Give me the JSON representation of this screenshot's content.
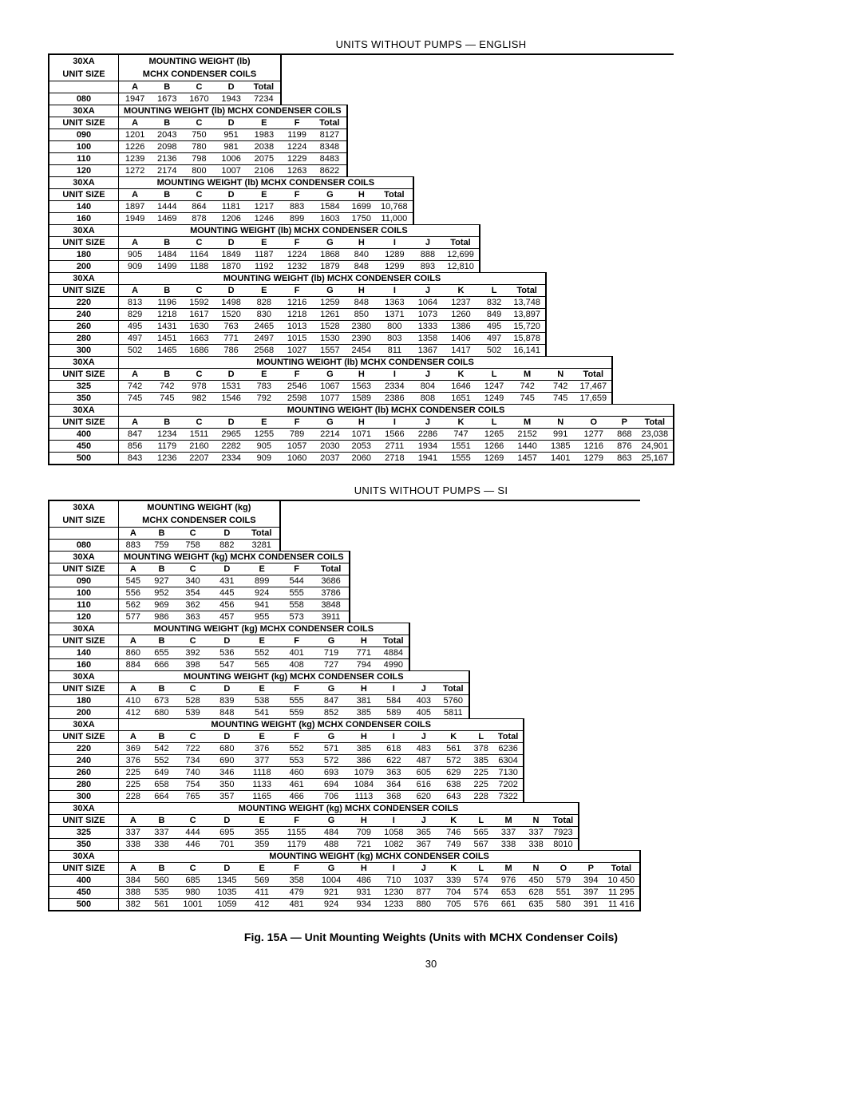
{
  "titles": {
    "english": "UNITS WITHOUT PUMPS — ENGLISH",
    "si": "UNITS WITHOUT PUMPS — SI"
  },
  "labels": {
    "unit_size_top": "30XA",
    "unit_size_bottom": "UNIT SIZE",
    "total": "Total"
  },
  "caption": "Fig. 15A — Unit Mounting Weights (Units with MCHX Condenser Coils)",
  "page_number": "30",
  "english": {
    "groups": [
      {
        "title_top": "MOUNTING WEIGHT (lb)",
        "title_bottom": "MCHX CONDENSER COILS",
        "letters": [
          "A",
          "B",
          "C",
          "D"
        ],
        "rows": [
          {
            "size": "080",
            "vals": [
              1947,
              1673,
              1670,
              1943
            ],
            "total": 7234
          }
        ]
      },
      {
        "title": "MOUNTING WEIGHT (lb) MCHX CONDENSER COILS",
        "letters": [
          "A",
          "B",
          "C",
          "D",
          "E",
          "F"
        ],
        "rows": [
          {
            "size": "090",
            "vals": [
              1201,
              2043,
              750,
              951,
              1983,
              1199
            ],
            "total": 8127
          },
          {
            "size": "100",
            "vals": [
              1226,
              2098,
              780,
              981,
              2038,
              1224
            ],
            "total": 8348
          },
          {
            "size": "110",
            "vals": [
              1239,
              2136,
              798,
              1006,
              2075,
              1229
            ],
            "total": 8483
          },
          {
            "size": "120",
            "vals": [
              1272,
              2174,
              800,
              1007,
              2106,
              1263
            ],
            "total": 8622
          }
        ]
      },
      {
        "title": "MOUNTING WEIGHT (lb) MCHX CONDENSER COILS",
        "letters": [
          "A",
          "B",
          "C",
          "D",
          "E",
          "F",
          "G",
          "H"
        ],
        "rows": [
          {
            "size": "140",
            "vals": [
              1897,
              1444,
              864,
              1181,
              1217,
              883,
              1584,
              1699
            ],
            "total": "10,768"
          },
          {
            "size": "160",
            "vals": [
              1949,
              1469,
              878,
              1206,
              1246,
              899,
              1603,
              1750
            ],
            "total": "11,000"
          }
        ]
      },
      {
        "title": "MOUNTING WEIGHT (lb) MCHX CONDENSER COILS",
        "letters": [
          "A",
          "B",
          "C",
          "D",
          "E",
          "F",
          "G",
          "H",
          "I",
          "J"
        ],
        "rows": [
          {
            "size": "180",
            "vals": [
              905,
              1484,
              1164,
              1849,
              1187,
              1224,
              1868,
              840,
              1289,
              888
            ],
            "total": "12,699"
          },
          {
            "size": "200",
            "vals": [
              909,
              1499,
              1188,
              1870,
              1192,
              1232,
              1879,
              848,
              1299,
              893
            ],
            "total": "12,810"
          }
        ]
      },
      {
        "title": "MOUNTING WEIGHT (lb) MCHX CONDENSER COILS",
        "letters": [
          "A",
          "B",
          "C",
          "D",
          "E",
          "F",
          "G",
          "H",
          "I",
          "J",
          "K",
          "L"
        ],
        "rows": [
          {
            "size": "220",
            "vals": [
              813,
              1196,
              1592,
              1498,
              828,
              1216,
              1259,
              848,
              1363,
              1064,
              1237,
              832
            ],
            "total": "13,748"
          },
          {
            "size": "240",
            "vals": [
              829,
              1218,
              1617,
              1520,
              830,
              1218,
              1261,
              850,
              1371,
              1073,
              1260,
              849
            ],
            "total": "13,897"
          },
          {
            "size": "260",
            "vals": [
              495,
              1431,
              1630,
              763,
              2465,
              1013,
              1528,
              2380,
              800,
              1333,
              1386,
              495
            ],
            "total": "15,720"
          },
          {
            "size": "280",
            "vals": [
              497,
              1451,
              1663,
              771,
              2497,
              1015,
              1530,
              2390,
              803,
              1358,
              1406,
              497
            ],
            "total": "15,878"
          },
          {
            "size": "300",
            "vals": [
              502,
              1465,
              1686,
              786,
              2568,
              1027,
              1557,
              2454,
              811,
              1367,
              1417,
              502
            ],
            "total": "16,141"
          }
        ]
      },
      {
        "title": "MOUNTING WEIGHT (lb) MCHX CONDENSER COILS",
        "letters": [
          "A",
          "B",
          "C",
          "D",
          "E",
          "F",
          "G",
          "H",
          "I",
          "J",
          "K",
          "L",
          "M",
          "N"
        ],
        "rows": [
          {
            "size": "325",
            "vals": [
              742,
              742,
              978,
              1531,
              783,
              2546,
              1067,
              1563,
              2334,
              804,
              1646,
              1247,
              742,
              742
            ],
            "total": "17,467"
          },
          {
            "size": "350",
            "vals": [
              745,
              745,
              982,
              1546,
              792,
              2598,
              1077,
              1589,
              2386,
              808,
              1651,
              1249,
              745,
              745
            ],
            "total": "17,659"
          }
        ]
      },
      {
        "title": "MOUNTING WEIGHT (lb) MCHX CONDENSER COILS",
        "letters": [
          "A",
          "B",
          "C",
          "D",
          "E",
          "F",
          "G",
          "H",
          "I",
          "J",
          "K",
          "L",
          "M",
          "N",
          "O",
          "P"
        ],
        "rows": [
          {
            "size": "400",
            "vals": [
              847,
              1234,
              1511,
              2965,
              1255,
              789,
              2214,
              1071,
              1566,
              2286,
              747,
              1265,
              2152,
              991,
              1277,
              868
            ],
            "total": "23,038"
          },
          {
            "size": "450",
            "vals": [
              856,
              1179,
              2160,
              2282,
              905,
              1057,
              2030,
              2053,
              2711,
              1934,
              1551,
              1266,
              1440,
              1385,
              1216,
              876
            ],
            "total": "24,901"
          },
          {
            "size": "500",
            "vals": [
              843,
              1236,
              2207,
              2334,
              909,
              1060,
              2037,
              2060,
              2718,
              1941,
              1555,
              1269,
              1457,
              1401,
              1279,
              863
            ],
            "total": "25,167"
          }
        ]
      }
    ]
  },
  "si": {
    "groups": [
      {
        "title_top": "MOUNTING WEIGHT (kg)",
        "title_bottom": "MCHX CONDENSER COILS",
        "letters": [
          "A",
          "B",
          "C",
          "D"
        ],
        "rows": [
          {
            "size": "080",
            "vals": [
              883,
              759,
              758,
              882
            ],
            "total": 3281
          }
        ]
      },
      {
        "title": "MOUNTING WEIGHT (kg) MCHX CONDENSER COILS",
        "letters": [
          "A",
          "B",
          "C",
          "D",
          "E",
          "F"
        ],
        "rows": [
          {
            "size": "090",
            "vals": [
              545,
              927,
              340,
              431,
              899,
              544
            ],
            "total": 3686
          },
          {
            "size": "100",
            "vals": [
              556,
              952,
              354,
              445,
              924,
              555
            ],
            "total": 3786
          },
          {
            "size": "110",
            "vals": [
              562,
              969,
              362,
              456,
              941,
              558
            ],
            "total": 3848
          },
          {
            "size": "120",
            "vals": [
              577,
              986,
              363,
              457,
              955,
              573
            ],
            "total": 3911
          }
        ]
      },
      {
        "title": "MOUNTING WEIGHT (kg) MCHX CONDENSER COILS",
        "letters": [
          "A",
          "B",
          "C",
          "D",
          "E",
          "F",
          "G",
          "H"
        ],
        "rows": [
          {
            "size": "140",
            "vals": [
              860,
              655,
              392,
              536,
              552,
              401,
              719,
              771
            ],
            "total": 4884
          },
          {
            "size": "160",
            "vals": [
              884,
              666,
              398,
              547,
              565,
              408,
              727,
              794
            ],
            "total": 4990
          }
        ]
      },
      {
        "title": "MOUNTING WEIGHT (kg) MCHX CONDENSER COILS",
        "letters": [
          "A",
          "B",
          "C",
          "D",
          "E",
          "F",
          "G",
          "H",
          "I",
          "J"
        ],
        "rows": [
          {
            "size": "180",
            "vals": [
              410,
              673,
              528,
              839,
              538,
              555,
              847,
              381,
              584,
              403
            ],
            "total": 5760
          },
          {
            "size": "200",
            "vals": [
              412,
              680,
              539,
              848,
              541,
              559,
              852,
              385,
              589,
              405
            ],
            "total": 5811
          }
        ]
      },
      {
        "title": "MOUNTING WEIGHT (kg) MCHX CONDENSER COILS",
        "letters": [
          "A",
          "B",
          "C",
          "D",
          "E",
          "F",
          "G",
          "H",
          "I",
          "J",
          "K",
          "L"
        ],
        "rows": [
          {
            "size": "220",
            "vals": [
              369,
              542,
              722,
              680,
              376,
              552,
              571,
              385,
              618,
              483,
              561,
              378
            ],
            "total": 6236
          },
          {
            "size": "240",
            "vals": [
              376,
              552,
              734,
              690,
              377,
              553,
              572,
              386,
              622,
              487,
              572,
              385
            ],
            "total": 6304
          },
          {
            "size": "260",
            "vals": [
              225,
              649,
              740,
              346,
              1118,
              460,
              693,
              1079,
              363,
              605,
              629,
              225
            ],
            "total": 7130
          },
          {
            "size": "280",
            "vals": [
              225,
              658,
              754,
              350,
              1133,
              461,
              694,
              1084,
              364,
              616,
              638,
              225
            ],
            "total": 7202
          },
          {
            "size": "300",
            "vals": [
              228,
              664,
              765,
              357,
              1165,
              466,
              706,
              1113,
              368,
              620,
              643,
              228
            ],
            "total": 7322
          }
        ]
      },
      {
        "title": "MOUNTING WEIGHT (kg) MCHX CONDENSER COILS",
        "letters": [
          "A",
          "B",
          "C",
          "D",
          "E",
          "F",
          "G",
          "H",
          "I",
          "J",
          "K",
          "L",
          "M",
          "N"
        ],
        "rows": [
          {
            "size": "325",
            "vals": [
              337,
              337,
              444,
              695,
              355,
              1155,
              484,
              709,
              1058,
              365,
              746,
              565,
              337,
              337
            ],
            "total": 7923
          },
          {
            "size": "350",
            "vals": [
              338,
              338,
              446,
              701,
              359,
              1179,
              488,
              721,
              1082,
              367,
              749,
              567,
              338,
              338
            ],
            "total": 8010
          }
        ]
      },
      {
        "title": "MOUNTING WEIGHT (kg) MCHX CONDENSER COILS",
        "letters": [
          "A",
          "B",
          "C",
          "D",
          "E",
          "F",
          "G",
          "H",
          "I",
          "J",
          "K",
          "L",
          "M",
          "N",
          "O",
          "P"
        ],
        "rows": [
          {
            "size": "400",
            "vals": [
              384,
              560,
              685,
              1345,
              569,
              358,
              1004,
              486,
              710,
              1037,
              339,
              574,
              976,
              450,
              579,
              394
            ],
            "total": "10 450"
          },
          {
            "size": "450",
            "vals": [
              388,
              535,
              980,
              1035,
              411,
              479,
              921,
              931,
              1230,
              877,
              704,
              574,
              653,
              628,
              551,
              397
            ],
            "total": "11 295"
          },
          {
            "size": "500",
            "vals": [
              382,
              561,
              1001,
              1059,
              412,
              481,
              924,
              934,
              1233,
              880,
              705,
              576,
              661,
              635,
              580,
              391
            ],
            "total": "11 416"
          }
        ]
      }
    ]
  }
}
